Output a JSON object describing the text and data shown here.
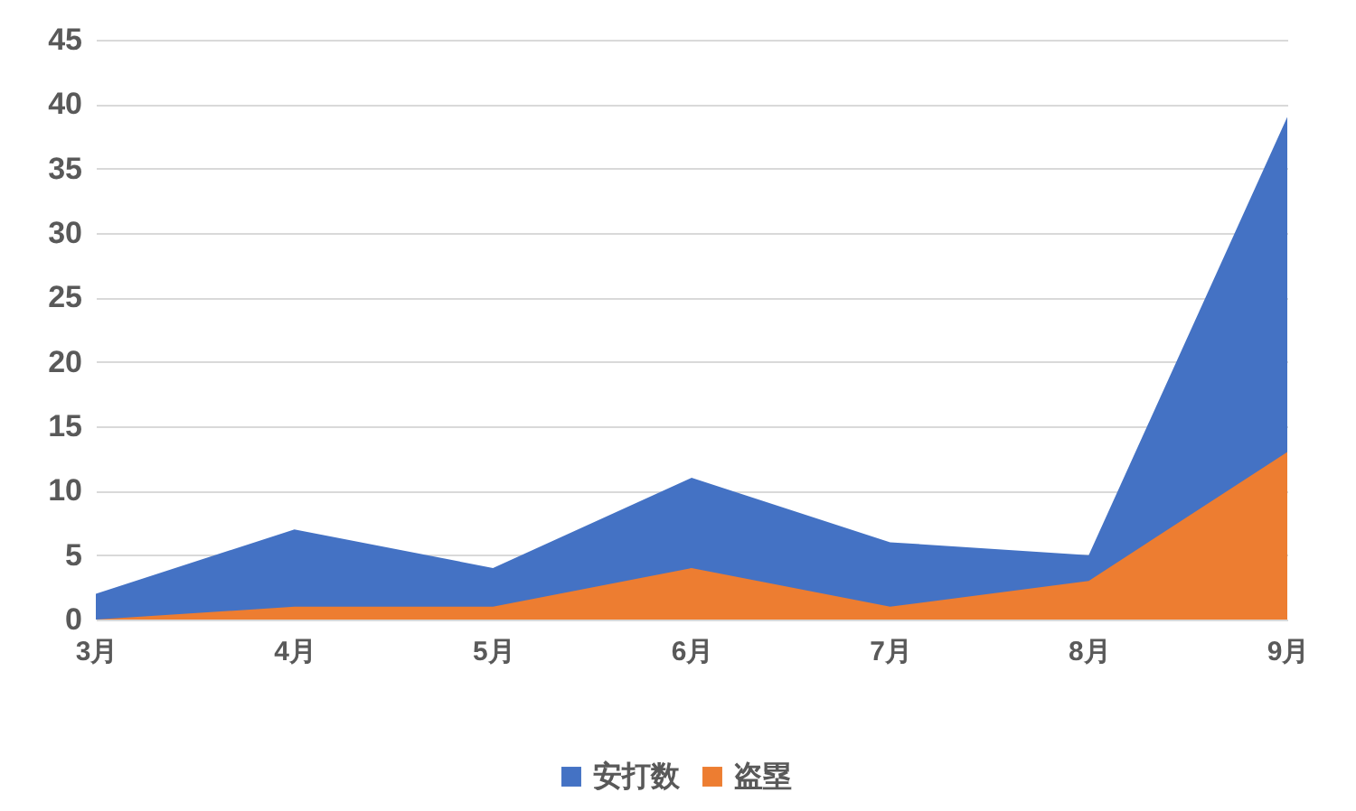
{
  "chart_data": {
    "type": "area",
    "categories": [
      "3月",
      "4月",
      "5月",
      "6月",
      "7月",
      "8月",
      "9月"
    ],
    "series": [
      {
        "name": "安打数",
        "color": "#4472c4",
        "values": [
          2,
          7,
          4,
          11,
          6,
          5,
          39
        ]
      },
      {
        "name": "盗塁",
        "color": "#ed7d31",
        "values": [
          0,
          1,
          1,
          4,
          1,
          3,
          13
        ]
      }
    ],
    "ylim": [
      0,
      45
    ],
    "yticks": [
      0,
      5,
      10,
      15,
      20,
      25,
      30,
      35,
      40,
      45
    ],
    "grid": "y",
    "legend": "bottom"
  }
}
